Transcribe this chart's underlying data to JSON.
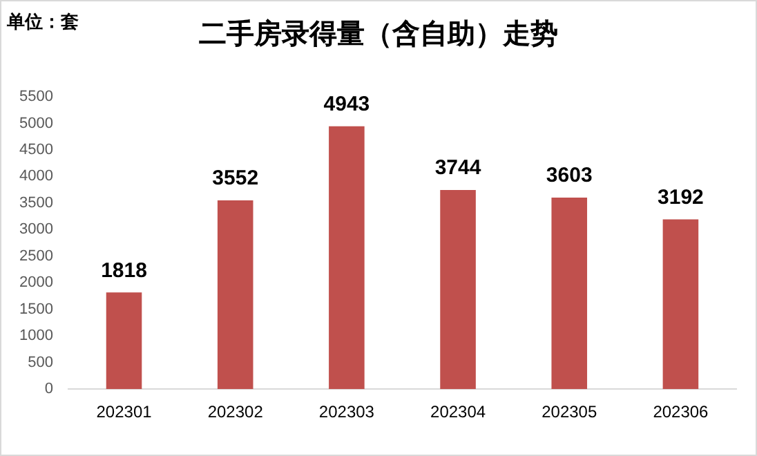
{
  "chart_data": {
    "type": "bar",
    "title": "二手房录得量（含自助）走势",
    "annotations": [
      "单位：套"
    ],
    "categories": [
      "202301",
      "202302",
      "202303",
      "202304",
      "202305",
      "202306"
    ],
    "values": [
      1818,
      3552,
      4943,
      3744,
      3603,
      3192
    ],
    "color": "#c0504d",
    "ylim": [
      0,
      5500
    ],
    "yticks": [
      0,
      500,
      1000,
      1500,
      2000,
      2500,
      3000,
      3500,
      4000,
      4500,
      5000,
      5500
    ],
    "grid": false,
    "legend": false,
    "data_labels": true
  }
}
